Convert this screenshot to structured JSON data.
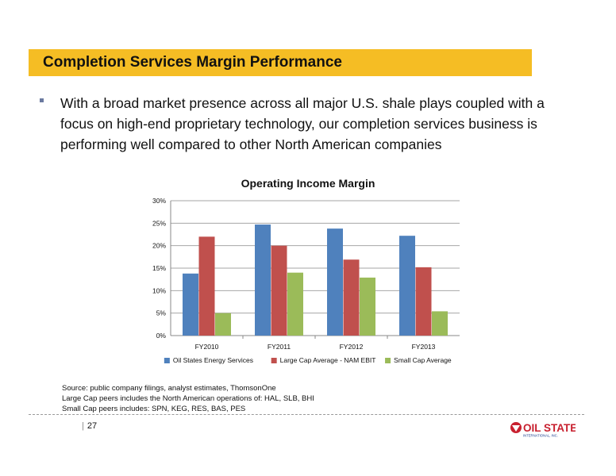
{
  "slide": {
    "title": "Completion Services Margin Performance",
    "bullet": "With a broad market presence across all major U.S. shale plays coupled with a focus on high-end proprietary technology, our completion services business is performing well compared to other North American companies",
    "source_lines": [
      "Source: public company filings, analyst estimates, ThomsonOne",
      "Large Cap peers includes the North American operations of: HAL, SLB, BHI",
      "Small Cap peers includes: SPN, KEG, RES, BAS, PES"
    ],
    "page_number": "27",
    "logo_text": "OIL STATES",
    "logo_subtext": "INTERNATIONAL, INC."
  },
  "colors": {
    "title_bar": "#f5bd24",
    "logo_red": "#c8202f",
    "logo_blue": "#1d3f8f"
  },
  "chart_data": {
    "type": "bar",
    "title": "Operating Income Margin",
    "xlabel": "",
    "ylabel": "",
    "categories": [
      "FY2010",
      "FY2011",
      "FY2012",
      "FY2013"
    ],
    "series": [
      {
        "name": "Oil States Energy Services",
        "values": [
          13.8,
          24.7,
          23.8,
          22.2
        ],
        "color": "#4f81bd"
      },
      {
        "name": "Large Cap Average - NAM EBIT",
        "values": [
          22.0,
          20.0,
          16.9,
          15.2
        ],
        "color": "#c0504d"
      },
      {
        "name": "Small Cap Average",
        "values": [
          5.0,
          14.0,
          12.9,
          5.4
        ],
        "color": "#9bbb59"
      }
    ],
    "ylim": [
      0,
      30
    ],
    "yticks": [
      "0%",
      "5%",
      "10%",
      "15%",
      "20%",
      "25%",
      "30%"
    ],
    "grid": true,
    "legend": "bottom"
  }
}
